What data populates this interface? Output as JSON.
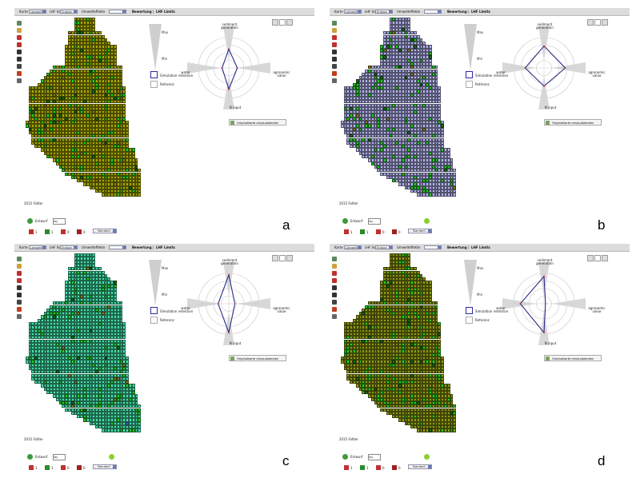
{
  "common": {
    "menu_karte": "Karte",
    "select_karte": "Langzeitansicht",
    "menu_lhf": "LHF Soll",
    "select_lhf": "Erosion",
    "menu_umwelt": "Umwelteffekte",
    "select_umwelt": "",
    "menu_bewertung": "Bewertung",
    "menu_lhf_limits": "LHF Limits",
    "year_label": "2015 Faltler",
    "radar_top": "sediment generation",
    "radar_right": "agronomic value",
    "radar_bottom": "N input",
    "radar_left": "water retention",
    "max_label": "Max",
    "min_label": "Min",
    "legend_simulation": "Simulation",
    "legend_reference": "Referenz",
    "orig_button": "Originalkarte ein/ausblenden",
    "entwurf_label": "Entwurf",
    "entwurf_value": "lay",
    "standard_select": "-- Standard --",
    "stat_values": [
      "1",
      "1",
      "0",
      "0"
    ]
  },
  "panels": [
    {
      "letter": "a",
      "fill": "#a8a800",
      "radar": [
        0.62,
        0.28,
        0.7,
        0.22
      ]
    },
    {
      "letter": "b",
      "fill": "#b4b4ee",
      "radar": [
        0.72,
        0.7,
        0.6,
        0.62
      ]
    },
    {
      "letter": "c",
      "fill": "#44e0a8",
      "radar": [
        0.95,
        0.2,
        0.95,
        0.35
      ]
    },
    {
      "letter": "d",
      "fill": "#8f9a10",
      "radar": [
        0.9,
        0.05,
        0.95,
        0.78
      ]
    }
  ],
  "colors": {
    "patch_green": "#22cc22",
    "patch_dark": "#1a6a1a",
    "patch_brown": "#8a7a20",
    "patch_blue": "#3a6acc",
    "radar_line": "#2b2b8a"
  }
}
